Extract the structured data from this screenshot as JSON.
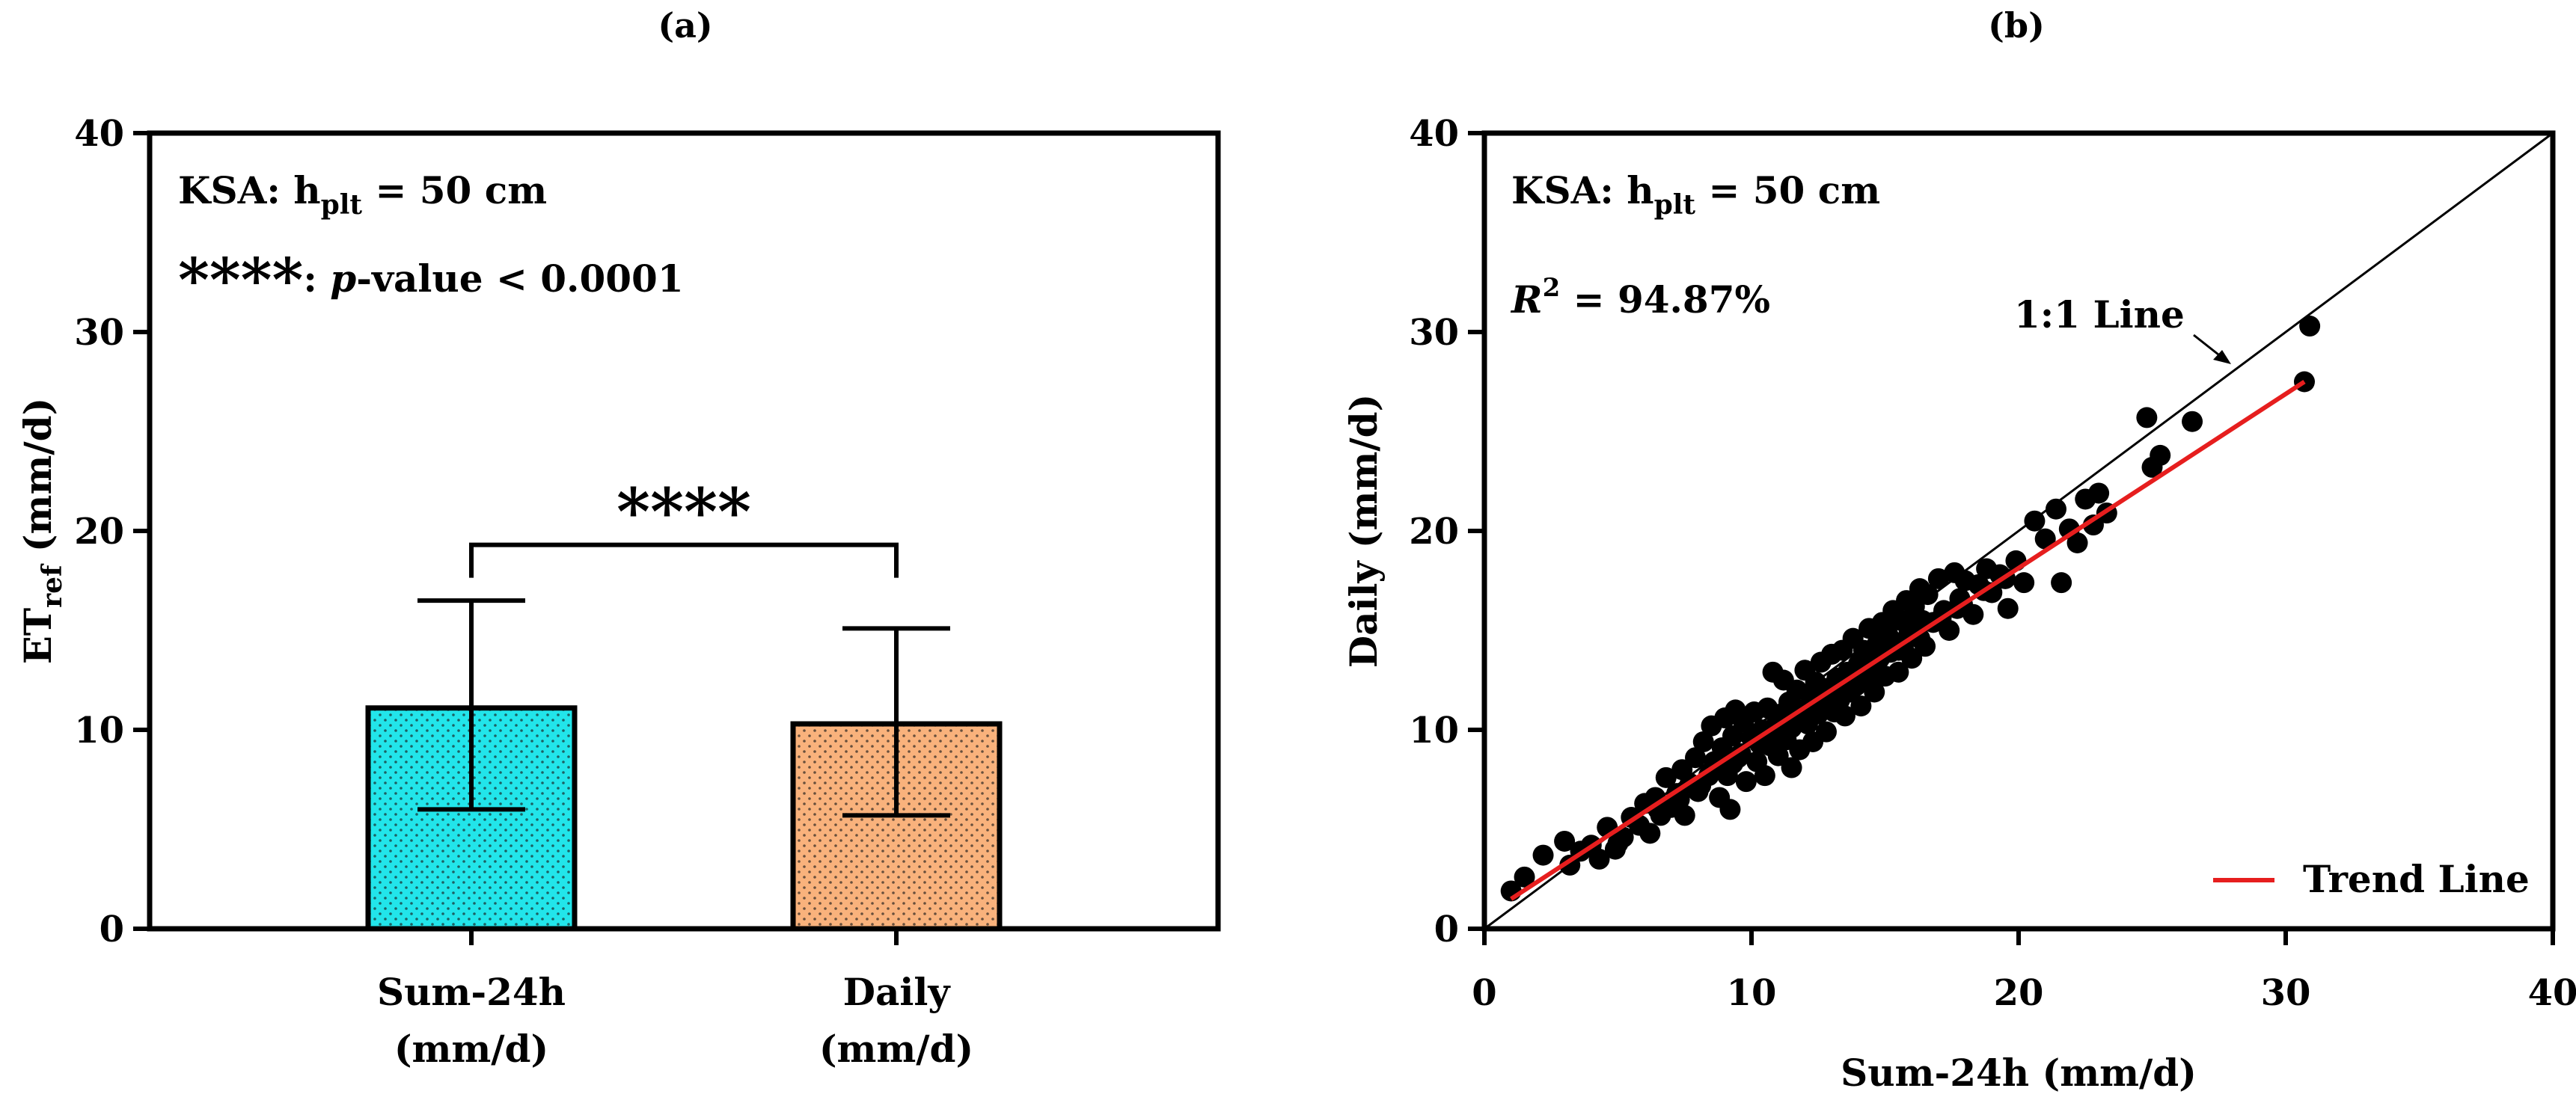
{
  "chart_data": [
    {
      "panel_label": "(a)",
      "type": "bar",
      "categories": [
        {
          "line1": "Sum-24h",
          "line2": "(mm/d)"
        },
        {
          "line1": "Daily",
          "line2": "(mm/d)"
        }
      ],
      "values": [
        11.1,
        10.3
      ],
      "error_lower": [
        6.0,
        5.7
      ],
      "error_upper": [
        16.5,
        15.1
      ],
      "bar_colors": [
        "#22e5ea",
        "#f9b27c"
      ],
      "ylabel_main": "ET",
      "ylabel_sub": "ref",
      "ylabel_unit": " (mm/d)",
      "ylim": [
        0,
        40
      ],
      "yticks": [
        "0",
        "10",
        "20",
        "30",
        "40"
      ],
      "annotation_site": "KSA: h",
      "annotation_site_sub": "plt",
      "annotation_site_tail": " = 50 cm",
      "annotation_stars": "****",
      "annotation_sig_colon": ": ",
      "annotation_sig_p": "p",
      "annotation_sig_tail": "-value < 0.0001",
      "significance_bracket_y": 19.3,
      "significance_label": "****"
    },
    {
      "panel_label": "(b)",
      "type": "scatter",
      "xlabel": "Sum-24h (mm/d)",
      "ylabel": "Daily (mm/d)",
      "xlim": [
        0,
        40
      ],
      "ylim": [
        0,
        40
      ],
      "xticks": [
        "0",
        "10",
        "20",
        "30",
        "40"
      ],
      "yticks": [
        "0",
        "10",
        "20",
        "30",
        "40"
      ],
      "annotation_site": "KSA: h",
      "annotation_site_sub": "plt",
      "annotation_site_tail": " = 50 cm",
      "r2_symbol": "R",
      "r2_exp": "2",
      "r2_value": " = 94.87%",
      "one_to_one_label": "1:1 Line",
      "trend_line": {
        "x": [
          1.0,
          30.7
        ],
        "y": [
          1.5,
          27.5
        ],
        "color": "#e61e1e"
      },
      "legend": {
        "label": "Trend Line",
        "position": "bottom-right"
      },
      "points": [
        [
          1.0,
          1.9
        ],
        [
          1.5,
          2.6
        ],
        [
          2.2,
          3.7
        ],
        [
          3.0,
          4.4
        ],
        [
          3.2,
          3.2
        ],
        [
          3.6,
          3.9
        ],
        [
          4.0,
          4.2
        ],
        [
          4.3,
          3.5
        ],
        [
          4.6,
          5.1
        ],
        [
          4.9,
          4.0
        ],
        [
          5.2,
          4.6
        ],
        [
          5.5,
          5.6
        ],
        [
          5.8,
          5.2
        ],
        [
          6.0,
          6.3
        ],
        [
          6.2,
          4.8
        ],
        [
          6.4,
          6.6
        ],
        [
          6.6,
          5.7
        ],
        [
          6.8,
          7.6
        ],
        [
          7.0,
          6.1
        ],
        [
          7.2,
          6.8
        ],
        [
          7.4,
          8.0
        ],
        [
          7.5,
          5.7
        ],
        [
          7.7,
          7.3
        ],
        [
          7.9,
          8.6
        ],
        [
          8.0,
          6.9
        ],
        [
          8.2,
          9.4
        ],
        [
          8.4,
          7.7
        ],
        [
          8.5,
          10.2
        ],
        [
          8.6,
          8.4
        ],
        [
          8.8,
          6.6
        ],
        [
          8.9,
          9.1
        ],
        [
          9.0,
          10.6
        ],
        [
          9.1,
          7.7
        ],
        [
          9.2,
          6.0
        ],
        [
          9.3,
          9.7
        ],
        [
          9.4,
          11.0
        ],
        [
          9.6,
          8.8
        ],
        [
          9.7,
          10.4
        ],
        [
          9.8,
          7.4
        ],
        [
          10.0,
          9.6
        ],
        [
          10.1,
          10.9
        ],
        [
          10.2,
          8.4
        ],
        [
          10.4,
          10.0
        ],
        [
          10.5,
          7.7
        ],
        [
          10.6,
          11.1
        ],
        [
          10.7,
          9.2
        ],
        [
          10.8,
          12.9
        ],
        [
          10.9,
          9.9
        ],
        [
          11.0,
          8.7
        ],
        [
          11.1,
          10.8
        ],
        [
          11.2,
          12.5
        ],
        [
          11.3,
          9.5
        ],
        [
          11.4,
          11.4
        ],
        [
          11.5,
          8.1
        ],
        [
          11.6,
          10.4
        ],
        [
          11.7,
          12.0
        ],
        [
          11.8,
          9.0
        ],
        [
          11.9,
          11.0
        ],
        [
          12.0,
          13.0
        ],
        [
          12.1,
          10.3
        ],
        [
          12.2,
          11.8
        ],
        [
          12.3,
          9.4
        ],
        [
          12.4,
          12.4
        ],
        [
          12.5,
          10.8
        ],
        [
          12.6,
          13.4
        ],
        [
          12.7,
          11.3
        ],
        [
          12.8,
          9.9
        ],
        [
          12.9,
          12.1
        ],
        [
          13.0,
          13.8
        ],
        [
          13.1,
          10.9
        ],
        [
          13.2,
          12.6
        ],
        [
          13.3,
          11.5
        ],
        [
          13.4,
          14.0
        ],
        [
          13.5,
          10.7
        ],
        [
          13.6,
          12.9
        ],
        [
          13.7,
          11.9
        ],
        [
          13.8,
          14.6
        ],
        [
          13.9,
          12.2
        ],
        [
          14.0,
          13.3
        ],
        [
          14.1,
          11.2
        ],
        [
          14.2,
          14.0
        ],
        [
          14.3,
          12.8
        ],
        [
          14.4,
          15.1
        ],
        [
          14.5,
          13.2
        ],
        [
          14.6,
          11.9
        ],
        [
          14.7,
          14.3
        ],
        [
          14.8,
          13.6
        ],
        [
          14.9,
          15.4
        ],
        [
          15.0,
          12.7
        ],
        [
          15.1,
          14.8
        ],
        [
          15.2,
          13.9
        ],
        [
          15.3,
          16.0
        ],
        [
          15.4,
          14.4
        ],
        [
          15.5,
          12.9
        ],
        [
          15.6,
          15.5
        ],
        [
          15.7,
          14.0
        ],
        [
          15.8,
          16.5
        ],
        [
          15.9,
          15.0
        ],
        [
          16.0,
          13.6
        ],
        [
          16.1,
          16.2
        ],
        [
          16.2,
          14.9
        ],
        [
          16.3,
          17.1
        ],
        [
          16.4,
          15.5
        ],
        [
          16.5,
          14.2
        ],
        [
          16.6,
          16.8
        ],
        [
          16.8,
          15.4
        ],
        [
          17.0,
          17.6
        ],
        [
          17.2,
          16.0
        ],
        [
          17.4,
          15.0
        ],
        [
          17.6,
          17.9
        ],
        [
          17.8,
          16.6
        ],
        [
          18.0,
          17.5
        ],
        [
          18.3,
          15.8
        ],
        [
          18.5,
          17.3
        ],
        [
          18.8,
          18.1
        ],
        [
          19.0,
          16.9
        ],
        [
          19.3,
          17.8
        ],
        [
          19.6,
          16.1
        ],
        [
          19.9,
          18.5
        ],
        [
          20.2,
          17.4
        ],
        [
          20.6,
          20.5
        ],
        [
          21.0,
          19.6
        ],
        [
          21.4,
          21.1
        ],
        [
          21.6,
          17.4
        ],
        [
          21.9,
          20.1
        ],
        [
          22.2,
          19.4
        ],
        [
          22.5,
          21.6
        ],
        [
          22.8,
          20.3
        ],
        [
          23.0,
          21.9
        ],
        [
          23.3,
          20.9
        ],
        [
          24.8,
          25.7
        ],
        [
          25.0,
          23.2
        ],
        [
          25.3,
          23.8
        ],
        [
          26.5,
          25.5
        ],
        [
          30.7,
          27.5
        ],
        [
          30.9,
          30.3
        ],
        [
          5.0,
          4.3
        ],
        [
          6.5,
          6.0
        ],
        [
          7.3,
          6.5
        ],
        [
          8.1,
          7.2
        ],
        [
          8.7,
          8.0
        ],
        [
          9.5,
          8.6
        ],
        [
          10.3,
          9.3
        ],
        [
          11.5,
          10.1
        ],
        [
          12.3,
          11.0
        ],
        [
          13.1,
          11.7
        ],
        [
          13.9,
          12.6
        ],
        [
          14.7,
          13.0
        ],
        [
          15.5,
          14.0
        ],
        [
          16.3,
          14.6
        ],
        [
          17.1,
          15.6
        ],
        [
          17.9,
          16.3
        ],
        [
          18.7,
          17.0
        ],
        [
          19.5,
          17.6
        ],
        [
          9.3,
          8.3
        ],
        [
          10.9,
          10.2
        ],
        [
          12.7,
          11.7
        ],
        [
          14.5,
          12.3
        ],
        [
          16.1,
          15.3
        ],
        [
          17.7,
          16.1
        ]
      ]
    }
  ]
}
